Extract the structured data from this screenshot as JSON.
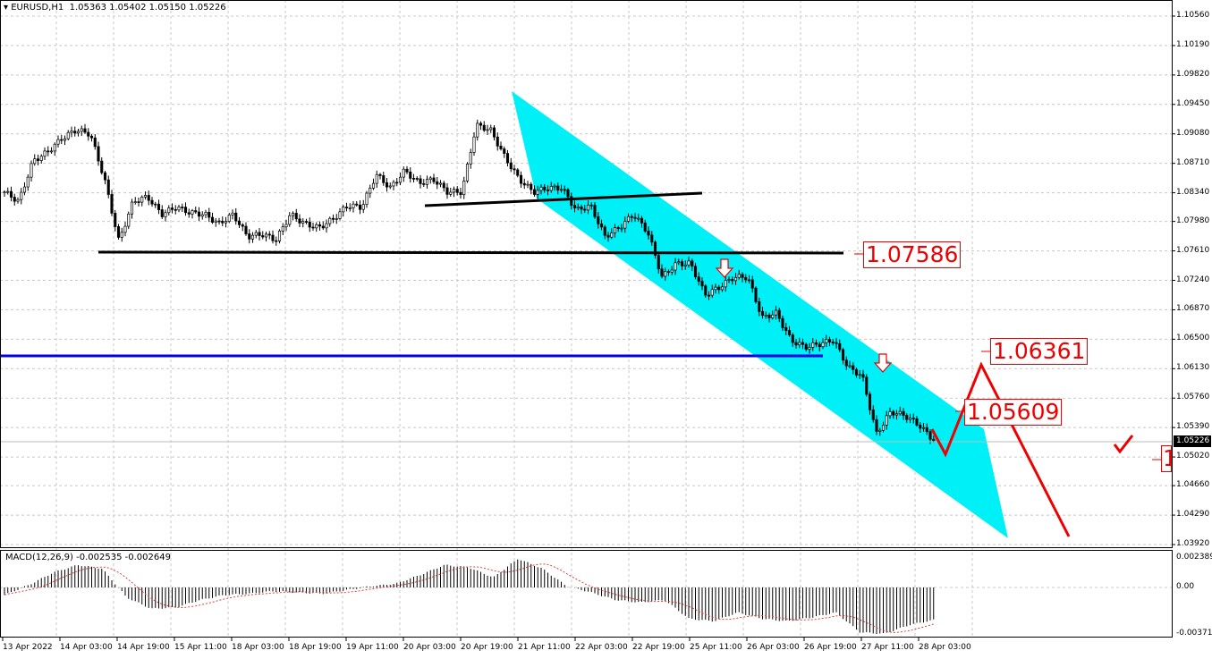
{
  "header": {
    "symbol": "EURUSD,H1",
    "open": "1.05363",
    "high": "1.05402",
    "low": "1.05150",
    "close": "1.05226"
  },
  "macd_header": {
    "label": "MACD(12,26,9)",
    "main": "-0.002535",
    "signal": "-0.002649"
  },
  "current_price": "1.05226",
  "annotations": {
    "level1": "1.07586",
    "level2": "1.06361",
    "level3": "1.05609",
    "level4_partial": "1"
  },
  "colors": {
    "channel": "#00f0f8",
    "target_path": "#ee0000",
    "support": "#0000e0",
    "trendline": "#000000",
    "labels": "#ee0000"
  },
  "chart_data": {
    "type": "candlestick",
    "symbol": "EURUSD",
    "timeframe": "H1",
    "ylim": [
      1.0392,
      1.1056
    ],
    "y_ticks": [
      "1.10560",
      "1.10190",
      "1.09820",
      "1.09450",
      "1.09080",
      "1.08710",
      "1.08340",
      "1.07980",
      "1.07610",
      "1.07240",
      "1.06870",
      "1.06500",
      "1.06130",
      "1.05760",
      "1.05390",
      "1.05020",
      "1.04660",
      "1.04290",
      "1.03920"
    ],
    "x_ticks": [
      "13 Apr 2022",
      "14 Apr 03:00",
      "14 Apr 19:00",
      "15 Apr 11:00",
      "18 Apr 03:00",
      "18 Apr 19:00",
      "19 Apr 11:00",
      "20 Apr 03:00",
      "20 Apr 19:00",
      "21 Apr 11:00",
      "22 Apr 03:00",
      "22 Apr 19:00",
      "25 Apr 11:00",
      "26 Apr 03:00",
      "26 Apr 19:00",
      "27 Apr 11:00",
      "28 Apr 03:00"
    ],
    "grid": true,
    "approx_closes": [
      1.0835,
      1.0823,
      1.0874,
      1.0885,
      1.0902,
      1.0913,
      1.0908,
      1.0851,
      1.0773,
      1.0823,
      1.0829,
      1.0807,
      1.0816,
      1.0809,
      1.0807,
      1.0795,
      1.0807,
      1.0779,
      1.0782,
      1.0775,
      1.0807,
      1.0795,
      1.079,
      1.0801,
      1.0818,
      1.0816,
      1.0857,
      1.084,
      1.0862,
      1.0846,
      1.0851,
      1.0835,
      1.0835,
      1.0919,
      1.0913,
      1.0879,
      1.0851,
      1.0835,
      1.084,
      1.084,
      1.0812,
      1.0818,
      1.0779,
      1.079,
      1.0807,
      1.0785,
      1.0728,
      1.0745,
      1.0745,
      1.0706,
      1.0715,
      1.0728,
      1.0728,
      1.0677,
      1.0683,
      1.0649,
      1.064,
      1.0644,
      1.0649,
      1.0615,
      1.0604,
      1.0531,
      1.0559,
      1.0554,
      1.0542,
      1.0523
    ],
    "macd": {
      "ylim": [
        -0.003719,
        0.002389
      ],
      "y_ticks": [
        "0.002389",
        "0.00",
        "-0.003719"
      ],
      "values": [
        -0.0006,
        0.0002,
        0.0012,
        0.0018,
        0.0015,
        -0.0008,
        -0.0017,
        -0.0016,
        -0.001,
        -0.0006,
        -0.0005,
        -0.0003,
        -0.0004,
        -0.0005,
        -0.0002,
        0.0001,
        0.0003,
        0.001,
        0.0018,
        0.0016,
        0.0008,
        0.0023,
        0.0015,
        0.0001,
        -0.0004,
        -0.001,
        -0.0012,
        -0.001,
        -0.0025,
        -0.0027,
        -0.002,
        -0.0025,
        -0.0027,
        -0.0024,
        -0.002,
        -0.0036,
        -0.0037,
        -0.003,
        -0.0026
      ]
    }
  }
}
